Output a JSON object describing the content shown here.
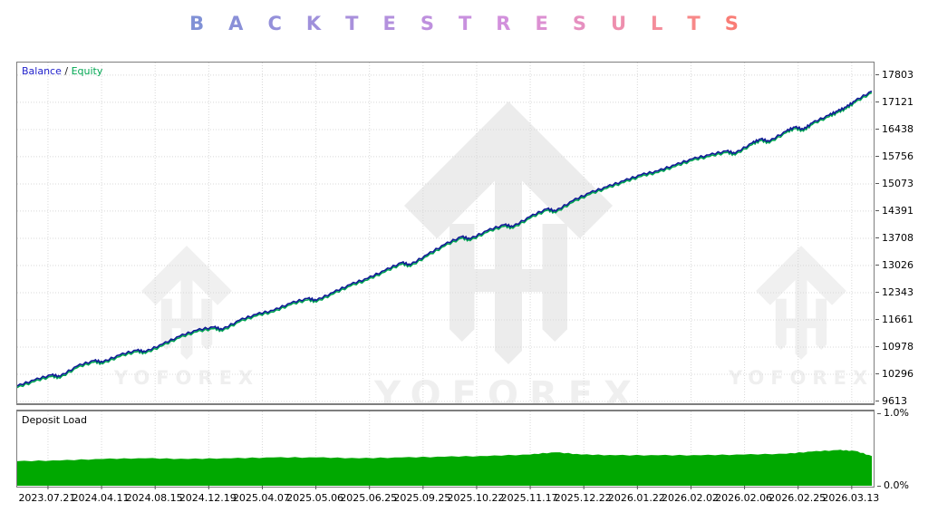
{
  "title": {
    "text": "BACKTEST RESULTS",
    "letters": [
      {
        "char": "B",
        "color": "#8091d6"
      },
      {
        "char": "A",
        "color": "#8a90d8"
      },
      {
        "char": "C",
        "color": "#9490da"
      },
      {
        "char": "K",
        "color": "#9f90db"
      },
      {
        "char": "T",
        "color": "#a990dc"
      },
      {
        "char": "E",
        "color": "#b390dd"
      },
      {
        "char": "S",
        "color": "#be90de"
      },
      {
        "char": "T",
        "color": "#c890de"
      },
      {
        "char": "R",
        "color": "#d290dc"
      },
      {
        "char": "E",
        "color": "#dc90d2"
      },
      {
        "char": "S",
        "color": "#e690c0"
      },
      {
        "char": "U",
        "color": "#ee8fae"
      },
      {
        "char": "L",
        "color": "#f48d9b"
      },
      {
        "char": "T",
        "color": "#f78888"
      },
      {
        "char": "S",
        "color": "#f97d76"
      }
    ]
  },
  "legend": {
    "balance": "Balance",
    "separator": " / ",
    "equity": "Equity"
  },
  "deposit_panel": {
    "label": "Deposit Load",
    "max_label": "1.0%",
    "min_label": "0.0%"
  },
  "watermark": {
    "text": "YOFOREX",
    "color": "#f0f0f0",
    "color_center": "#ececec"
  },
  "colors": {
    "balance_line": "#121a96",
    "equity_line": "#00a651",
    "deposit_fill": "#00a800",
    "grid": "#d8d8d8",
    "panel_border": "#7e7e7e",
    "axis_text": "#000000"
  },
  "chart_data": [
    {
      "type": "line",
      "title": "Balance / Equity",
      "x_labels": [
        "2023.07.21",
        "2024.04.11",
        "2024.08.15",
        "2024.12.19",
        "2025.04.07",
        "2025.05.06",
        "2025.06.25",
        "2025.09.25",
        "2025.10.22",
        "2025.11.17",
        "2025.12.22",
        "2026.01.22",
        "2026.02.02",
        "2026.02.06",
        "2026.02.25",
        "2026.03.13"
      ],
      "y_ticks": [
        17803,
        17121,
        16438,
        15756,
        15073,
        14391,
        13708,
        13026,
        12343,
        11661,
        10978,
        10296,
        9613
      ],
      "ylim": [
        9590,
        18120
      ],
      "grid": true,
      "legend_position": "top-left",
      "series": [
        {
          "name": "Balance",
          "x": [
            0,
            0.02,
            0.04,
            0.05,
            0.07,
            0.09,
            0.1,
            0.12,
            0.14,
            0.15,
            0.17,
            0.19,
            0.21,
            0.23,
            0.24,
            0.26,
            0.28,
            0.3,
            0.32,
            0.34,
            0.35,
            0.37,
            0.39,
            0.41,
            0.43,
            0.45,
            0.46,
            0.48,
            0.5,
            0.52,
            0.53,
            0.55,
            0.57,
            0.58,
            0.6,
            0.62,
            0.63,
            0.65,
            0.67,
            0.69,
            0.71,
            0.73,
            0.75,
            0.77,
            0.79,
            0.81,
            0.83,
            0.84,
            0.86,
            0.87,
            0.88,
            0.9,
            0.91,
            0.92,
            0.93,
            0.95,
            0.96,
            0.97,
            0.98,
            1.0
          ],
          "values": [
            10000,
            10150,
            10280,
            10240,
            10500,
            10640,
            10600,
            10780,
            10900,
            10860,
            11050,
            11250,
            11400,
            11480,
            11420,
            11650,
            11800,
            11900,
            12080,
            12200,
            12150,
            12350,
            12550,
            12700,
            12900,
            13100,
            13040,
            13300,
            13550,
            13750,
            13690,
            13900,
            14050,
            14000,
            14250,
            14450,
            14390,
            14650,
            14850,
            15000,
            15150,
            15300,
            15400,
            15550,
            15700,
            15800,
            15900,
            15840,
            16100,
            16200,
            16140,
            16400,
            16500,
            16440,
            16600,
            16800,
            16900,
            17000,
            17150,
            17400
          ]
        },
        {
          "name": "Equity",
          "x": [
            0,
            0.02,
            0.04,
            0.05,
            0.07,
            0.09,
            0.1,
            0.12,
            0.14,
            0.15,
            0.17,
            0.19,
            0.21,
            0.23,
            0.24,
            0.26,
            0.28,
            0.3,
            0.32,
            0.34,
            0.35,
            0.37,
            0.39,
            0.41,
            0.43,
            0.45,
            0.46,
            0.48,
            0.5,
            0.52,
            0.53,
            0.55,
            0.57,
            0.58,
            0.6,
            0.62,
            0.63,
            0.65,
            0.67,
            0.69,
            0.71,
            0.73,
            0.75,
            0.77,
            0.79,
            0.81,
            0.83,
            0.84,
            0.86,
            0.87,
            0.88,
            0.9,
            0.91,
            0.92,
            0.93,
            0.95,
            0.96,
            0.97,
            0.98,
            1.0
          ],
          "values": [
            9960,
            10110,
            10240,
            10200,
            10460,
            10600,
            10560,
            10740,
            10860,
            10820,
            11010,
            11210,
            11360,
            11440,
            11380,
            11610,
            11760,
            11860,
            12040,
            12160,
            12110,
            12310,
            12510,
            12660,
            12860,
            13060,
            13000,
            13260,
            13510,
            13710,
            13650,
            13860,
            14010,
            13960,
            14210,
            14410,
            14350,
            14610,
            14810,
            14960,
            15110,
            15260,
            15360,
            15510,
            15660,
            15760,
            15860,
            15800,
            16060,
            16160,
            16100,
            16360,
            16460,
            16400,
            16560,
            16760,
            16860,
            16960,
            17110,
            17360
          ]
        }
      ]
    },
    {
      "type": "area",
      "title": "Deposit Load",
      "ylim": [
        0,
        1.0
      ],
      "y_tick_labels": [
        "1.0%",
        "0.0%"
      ],
      "grid": true,
      "series": [
        {
          "name": "Deposit Load",
          "x": [
            0,
            0.05,
            0.1,
            0.15,
            0.2,
            0.25,
            0.3,
            0.35,
            0.4,
            0.45,
            0.5,
            0.55,
            0.6,
            0.63,
            0.66,
            0.7,
            0.75,
            0.8,
            0.85,
            0.9,
            0.93,
            0.96,
            0.98,
            1.0
          ],
          "values": [
            0.33,
            0.34,
            0.36,
            0.37,
            0.36,
            0.37,
            0.38,
            0.38,
            0.37,
            0.38,
            0.39,
            0.4,
            0.42,
            0.45,
            0.42,
            0.41,
            0.41,
            0.41,
            0.42,
            0.43,
            0.46,
            0.48,
            0.47,
            0.4
          ]
        }
      ]
    }
  ]
}
